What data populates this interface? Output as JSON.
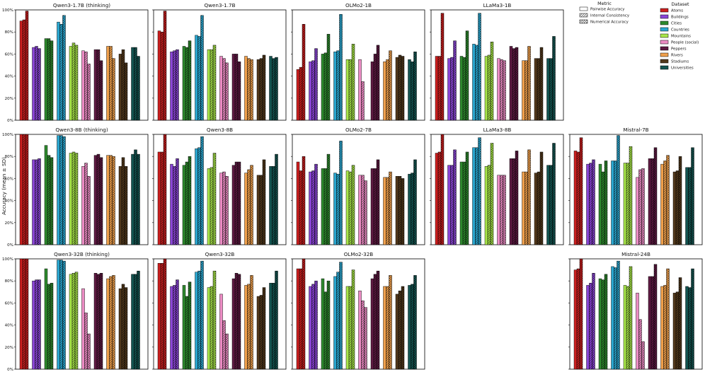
{
  "figure": {
    "ylabel": "Accuracy (mean ± SD)"
  },
  "legend_metric": {
    "title": "Metric",
    "items": [
      {
        "label": "Pairwise Accuracy",
        "pattern": "none"
      },
      {
        "label": "Internal Consistency",
        "pattern": "diag"
      },
      {
        "label": "Numerical Accuracy",
        "pattern": "cross"
      }
    ]
  },
  "legend_dataset": {
    "title": "Dataset",
    "items": [
      {
        "label": "Atoms",
        "color": "#cc1f1f"
      },
      {
        "label": "Buildings",
        "color": "#8a45d6"
      },
      {
        "label": "Cities",
        "color": "#2e8a2e"
      },
      {
        "label": "Countries",
        "color": "#2aa6cf"
      },
      {
        "label": "Mountains",
        "color": "#a8e64a"
      },
      {
        "label": "People (social)",
        "color": "#ec8cc4"
      },
      {
        "label": "Peppers",
        "color": "#5e1a42"
      },
      {
        "label": "Rivers",
        "color": "#f0a04c"
      },
      {
        "label": "Stadiums",
        "color": "#52391c"
      },
      {
        "label": "Universities",
        "color": "#135450"
      }
    ]
  },
  "chart_data": {
    "type": "bar",
    "categories": [
      "Atoms",
      "Buildings",
      "Cities",
      "Countries",
      "Mountains",
      "People (social)",
      "Peppers",
      "Rivers",
      "Stadiums",
      "Universities"
    ],
    "series_names": [
      "Pairwise Accuracy",
      "Internal Consistency",
      "Numerical Accuracy"
    ],
    "ylim": [
      0,
      1.0
    ],
    "yticks": [
      "0%",
      "20%",
      "40%",
      "60%",
      "80%",
      "100%"
    ],
    "ylabel": "Accuracy (mean ± SD)",
    "panels": [
      {
        "title": "Qwen3-1.7B (thinking)",
        "row": 0,
        "col": 0,
        "values": [
          [
            0.9,
            0.91,
            0.99
          ],
          [
            0.66,
            0.67,
            0.65
          ],
          [
            0.74,
            0.74,
            0.72
          ],
          [
            0.89,
            0.87,
            0.95
          ],
          [
            0.67,
            0.7,
            0.68
          ],
          [
            0.63,
            0.62,
            0.51
          ],
          [
            0.64,
            0.64,
            0.54
          ],
          [
            0.67,
            0.67,
            0.56
          ],
          [
            0.6,
            0.64,
            0.52
          ],
          [
            0.66,
            0.66,
            0.58
          ]
        ]
      },
      {
        "title": "Qwen3-1.7B",
        "row": 0,
        "col": 1,
        "values": [
          [
            0.81,
            0.8,
            0.99
          ],
          [
            0.62,
            0.63,
            0.64
          ],
          [
            0.67,
            0.66,
            0.72
          ],
          [
            0.77,
            0.76,
            0.95
          ],
          [
            0.64,
            0.64,
            0.68
          ],
          [
            0.58,
            0.56,
            0.52
          ],
          [
            0.6,
            0.6,
            0.53
          ],
          [
            0.58,
            0.56,
            0.55
          ],
          [
            0.55,
            0.56,
            0.59
          ],
          [
            0.58,
            0.56,
            0.57
          ]
        ]
      },
      {
        "title": "OLMo2-1B",
        "row": 0,
        "col": 2,
        "values": [
          [
            0.46,
            0.48,
            0.87
          ],
          [
            0.53,
            0.54,
            0.65
          ],
          [
            0.6,
            0.61,
            0.78
          ],
          [
            0.62,
            0.63,
            0.96
          ],
          [
            0.55,
            0.55,
            0.69
          ],
          [
            0.55,
            0.35,
            0.0
          ],
          [
            0.53,
            0.6,
            0.68
          ],
          [
            0.53,
            0.55,
            0.63
          ],
          [
            0.57,
            0.59,
            0.58
          ],
          [
            0.55,
            0.53,
            0.62
          ]
        ]
      },
      {
        "title": "LLaMa3-1B",
        "row": 0,
        "col": 3,
        "values": [
          [
            0.58,
            0.58,
            0.97
          ],
          [
            0.56,
            0.57,
            0.72
          ],
          [
            0.58,
            0.57,
            0.81
          ],
          [
            0.69,
            0.68,
            0.97
          ],
          [
            0.58,
            0.59,
            0.71
          ],
          [
            0.56,
            0.55,
            0.54
          ],
          [
            0.67,
            0.65,
            0.66
          ],
          [
            0.54,
            0.54,
            0.67
          ],
          [
            0.56,
            0.56,
            0.66
          ],
          [
            0.56,
            0.56,
            0.76
          ]
        ]
      },
      {
        "title": "Qwen3-8B (thinking)",
        "row": 1,
        "col": 0,
        "values": [
          [
            1.0,
            1.0,
            1.0
          ],
          [
            0.77,
            0.77,
            0.78
          ],
          [
            0.9,
            0.81,
            0.79
          ],
          [
            0.99,
            0.99,
            0.98
          ],
          [
            0.83,
            0.84,
            0.83
          ],
          [
            0.71,
            0.74,
            0.62
          ],
          [
            0.81,
            0.82,
            0.79
          ],
          [
            0.81,
            0.81,
            0.8
          ],
          [
            0.71,
            0.79,
            0.71
          ],
          [
            0.82,
            0.86,
            0.82
          ]
        ]
      },
      {
        "title": "Qwen3-8B",
        "row": 1,
        "col": 1,
        "values": [
          [
            0.84,
            0.84,
            1.0
          ],
          [
            0.73,
            0.71,
            0.78
          ],
          [
            0.72,
            0.75,
            0.8
          ],
          [
            0.87,
            0.88,
            0.98
          ],
          [
            0.69,
            0.7,
            0.83
          ],
          [
            0.65,
            0.66,
            0.62
          ],
          [
            0.72,
            0.75,
            0.75
          ],
          [
            0.65,
            0.68,
            0.72
          ],
          [
            0.63,
            0.63,
            0.77
          ],
          [
            0.71,
            0.71,
            0.82
          ]
        ]
      },
      {
        "title": "OLMo2-7B",
        "row": 1,
        "col": 2,
        "values": [
          [
            0.75,
            0.67,
            0.8
          ],
          [
            0.66,
            0.67,
            0.73
          ],
          [
            0.69,
            0.69,
            0.82
          ],
          [
            0.65,
            0.64,
            0.94
          ],
          [
            0.67,
            0.66,
            0.72
          ],
          [
            0.63,
            0.63,
            0.58
          ],
          [
            0.69,
            0.69,
            0.77
          ],
          [
            0.61,
            0.61,
            0.66
          ],
          [
            0.62,
            0.62,
            0.6
          ],
          [
            0.64,
            0.65,
            0.77
          ]
        ]
      },
      {
        "title": "LLaMa3-8B",
        "row": 1,
        "col": 3,
        "values": [
          [
            0.83,
            0.84,
            1.0
          ],
          [
            0.72,
            0.72,
            0.86
          ],
          [
            0.75,
            0.75,
            0.84
          ],
          [
            0.88,
            0.88,
            0.97
          ],
          [
            0.71,
            0.72,
            0.92
          ],
          [
            0.63,
            0.63,
            0.63
          ],
          [
            0.78,
            0.78,
            0.85
          ],
          [
            0.66,
            0.66,
            0.86
          ],
          [
            0.65,
            0.66,
            0.84
          ],
          [
            0.72,
            0.72,
            0.92
          ]
        ]
      },
      {
        "title": "Mistral-7B",
        "row": 1,
        "col": 4,
        "values": [
          [
            0.85,
            0.84,
            0.97
          ],
          [
            0.73,
            0.74,
            0.77
          ],
          [
            0.73,
            0.66,
            0.76
          ],
          [
            0.76,
            0.76,
            0.99
          ],
          [
            0.74,
            0.74,
            0.89
          ],
          [
            0.61,
            0.68,
            0.69
          ],
          [
            0.78,
            0.78,
            0.88
          ],
          [
            0.73,
            0.76,
            0.81
          ],
          [
            0.66,
            0.67,
            0.8
          ],
          [
            0.7,
            0.7,
            0.88
          ]
        ]
      },
      {
        "title": "Qwen3-32B (thinking)",
        "row": 2,
        "col": 0,
        "values": [
          [
            1.0,
            1.0,
            1.0
          ],
          [
            0.8,
            0.81,
            0.81
          ],
          [
            0.91,
            0.77,
            0.78
          ],
          [
            0.99,
            0.99,
            0.98
          ],
          [
            0.86,
            0.87,
            0.88
          ],
          [
            0.73,
            0.51,
            0.32
          ],
          [
            0.87,
            0.86,
            0.87
          ],
          [
            0.82,
            0.84,
            0.85
          ],
          [
            0.73,
            0.77,
            0.74
          ],
          [
            0.86,
            0.86,
            0.89
          ]
        ]
      },
      {
        "title": "Qwen3-32B",
        "row": 2,
        "col": 1,
        "values": [
          [
            0.96,
            0.96,
            1.0
          ],
          [
            0.75,
            0.76,
            0.81
          ],
          [
            0.76,
            0.66,
            0.79
          ],
          [
            0.88,
            0.89,
            0.98
          ],
          [
            0.74,
            0.75,
            0.89
          ],
          [
            0.68,
            0.44,
            0.32
          ],
          [
            0.82,
            0.87,
            0.86
          ],
          [
            0.76,
            0.77,
            0.85
          ],
          [
            0.66,
            0.67,
            0.74
          ],
          [
            0.78,
            0.78,
            0.89
          ]
        ]
      },
      {
        "title": "OLMo2-32B",
        "row": 2,
        "col": 2,
        "values": [
          [
            0.91,
            0.91,
            1.0
          ],
          [
            0.75,
            0.77,
            0.8
          ],
          [
            0.82,
            0.7,
            0.8
          ],
          [
            0.84,
            0.88,
            0.97
          ],
          [
            0.75,
            0.75,
            0.9
          ],
          [
            0.71,
            0.62,
            0.56
          ],
          [
            0.82,
            0.86,
            0.89
          ],
          [
            0.75,
            0.75,
            0.85
          ],
          [
            0.68,
            0.71,
            0.75
          ],
          [
            0.76,
            0.77,
            0.85
          ]
        ]
      },
      {
        "title": "Mistral-24B",
        "row": 2,
        "col": 4,
        "values": [
          [
            0.9,
            0.91,
            1.0
          ],
          [
            0.76,
            0.78,
            0.87
          ],
          [
            0.82,
            0.81,
            0.86
          ],
          [
            0.93,
            0.92,
            0.98
          ],
          [
            0.76,
            0.75,
            0.93
          ],
          [
            0.69,
            0.45,
            0.25
          ],
          [
            0.84,
            0.84,
            0.95
          ],
          [
            0.75,
            0.76,
            0.91
          ],
          [
            0.69,
            0.7,
            0.83
          ],
          [
            0.75,
            0.74,
            0.91
          ]
        ]
      }
    ]
  }
}
